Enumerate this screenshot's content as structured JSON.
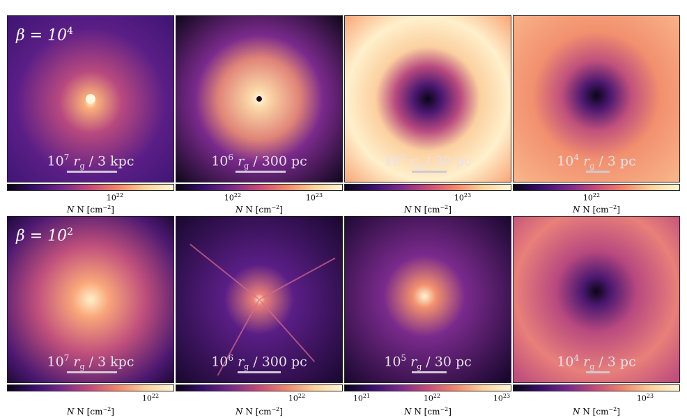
{
  "rows": [
    {
      "beta_label": "β = 10",
      "beta_exp": "4",
      "panels": [
        {
          "scale_base": "10",
          "scale_exp": "7",
          "scale_var": "r",
          "scale_sub": "g",
          "scale_phys": "/ 3 kpc",
          "ticks": [
            {
              "base": "10",
              "exp": "22"
            }
          ]
        },
        {
          "scale_base": "10",
          "scale_exp": "6",
          "scale_var": "r",
          "scale_sub": "g",
          "scale_phys": "/ 300 pc",
          "ticks": [
            {
              "base": "10",
              "exp": "22"
            },
            {
              "base": "10",
              "exp": "23"
            }
          ]
        },
        {
          "scale_base": "10",
          "scale_exp": "5",
          "scale_var": "r",
          "scale_sub": "g",
          "scale_phys": "/ 30 pc",
          "ticks": [
            {
              "base": "10",
              "exp": "23"
            }
          ]
        },
        {
          "scale_base": "10",
          "scale_exp": "4",
          "scale_var": "r",
          "scale_sub": "g",
          "scale_phys": "/ 3 pc",
          "ticks": [
            {
              "base": "10",
              "exp": "22"
            }
          ]
        }
      ]
    },
    {
      "beta_label": "β = 10",
      "beta_exp": "2",
      "panels": [
        {
          "scale_base": "10",
          "scale_exp": "7",
          "scale_var": "r",
          "scale_sub": "g",
          "scale_phys": "/ 3 kpc",
          "ticks": [
            {
              "base": "10",
              "exp": "22"
            }
          ]
        },
        {
          "scale_base": "10",
          "scale_exp": "6",
          "scale_var": "r",
          "scale_sub": "g",
          "scale_phys": "/ 300 pc",
          "ticks": [
            {
              "base": "10",
              "exp": "22"
            }
          ]
        },
        {
          "scale_base": "10",
          "scale_exp": "5",
          "scale_var": "r",
          "scale_sub": "g",
          "scale_phys": "/ 30 pc",
          "ticks": [
            {
              "base": "10",
              "exp": "21"
            },
            {
              "base": "10",
              "exp": "22"
            },
            {
              "base": "10",
              "exp": "23"
            }
          ]
        },
        {
          "scale_base": "10",
          "scale_exp": "4",
          "scale_var": "r",
          "scale_sub": "g",
          "scale_phys": "/ 3 pc",
          "ticks": [
            {
              "base": "10",
              "exp": "23"
            }
          ]
        }
      ]
    }
  ],
  "colorbar_label": "N [cm",
  "colorbar_label_exp": "−2",
  "colorbar_label_close": "]",
  "colormap": [
    "#0b0518",
    "#3a0f6e",
    "#7a2a8c",
    "#c94a78",
    "#f2866a",
    "#fcd39a",
    "#fff8d8"
  ]
}
